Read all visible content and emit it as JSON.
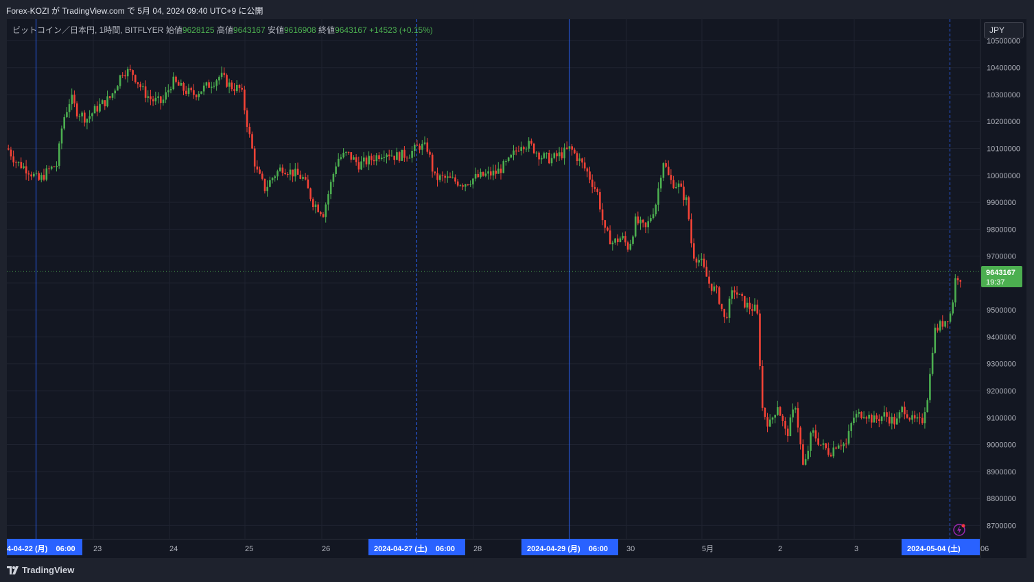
{
  "header": {
    "publish_text": "Forex-KOZI が TradingView.com で 5月 04, 2024 09:40 UTC+9 に公開"
  },
  "legend": {
    "symbol": "ビットコイン／日本円, 1時間, BITFLYER",
    "open_label": "始値",
    "open": "9628125",
    "high_label": "高値",
    "high": "9643167",
    "low_label": "安値",
    "low": "9616908",
    "close_label": "終値",
    "close": "9643167",
    "change": "+14523 (+0.15%)"
  },
  "currency_button": "JPY",
  "price_tag": {
    "price": "9643167",
    "countdown": "19:37"
  },
  "footer": {
    "brand": "TradingView"
  },
  "colors": {
    "up": "#4caf50",
    "down": "#f44336",
    "background": "#131722",
    "grid": "#1f2330",
    "session_line": "#2962ff",
    "price_tag": "#4caf50"
  },
  "icons": {
    "brand": "tradingview-logo-icon",
    "alert": "lightning-icon"
  },
  "chart_data": {
    "type": "candlestick",
    "symbol": "ビットコイン／日本円",
    "interval": "1時間",
    "exchange": "BITFLYER",
    "ylim": [
      8650000,
      10580000
    ],
    "y_ticks": [
      8700000,
      8800000,
      8900000,
      9000000,
      9100000,
      9200000,
      9300000,
      9400000,
      9500000,
      9600000,
      9700000,
      9800000,
      9900000,
      10000000,
      10100000,
      10200000,
      10300000,
      10400000,
      10500000
    ],
    "x_ticks": [
      "23",
      "24",
      "25",
      "26",
      "28",
      "30",
      "5月",
      "2",
      "3",
      "06"
    ],
    "highlighted_dates": [
      "4-04-22 (月)    06:00",
      "2024-04-27 (土)    06:00",
      "2024-04-29 (月)    06:00",
      "2024-05-04 (土)"
    ],
    "last_price": 9643167,
    "grid": true,
    "path_points": [
      [
        0,
        10100000
      ],
      [
        12,
        10050000
      ],
      [
        30,
        10020000
      ],
      [
        45,
        9980000
      ],
      [
        60,
        10020000
      ],
      [
        72,
        10040000
      ],
      [
        80,
        10200000
      ],
      [
        92,
        10290000
      ],
      [
        100,
        10240000
      ],
      [
        115,
        10210000
      ],
      [
        130,
        10250000
      ],
      [
        150,
        10290000
      ],
      [
        168,
        10390000
      ],
      [
        182,
        10380000
      ],
      [
        198,
        10310000
      ],
      [
        210,
        10280000
      ],
      [
        225,
        10270000
      ],
      [
        240,
        10350000
      ],
      [
        255,
        10320000
      ],
      [
        270,
        10300000
      ],
      [
        290,
        10330000
      ],
      [
        310,
        10370000
      ],
      [
        325,
        10330000
      ],
      [
        340,
        10320000
      ],
      [
        352,
        10150000
      ],
      [
        362,
        10020000
      ],
      [
        375,
        9950000
      ],
      [
        388,
        10000000
      ],
      [
        400,
        10030000
      ],
      [
        415,
        10010000
      ],
      [
        430,
        9990000
      ],
      [
        445,
        9900000
      ],
      [
        460,
        9860000
      ],
      [
        470,
        9960000
      ],
      [
        480,
        10060000
      ],
      [
        495,
        10080000
      ],
      [
        512,
        10040000
      ],
      [
        530,
        10060000
      ],
      [
        550,
        10090000
      ],
      [
        565,
        10070000
      ],
      [
        585,
        10080000
      ],
      [
        600,
        10110000
      ],
      [
        612,
        10100000
      ],
      [
        622,
        9990000
      ],
      [
        635,
        9990000
      ],
      [
        650,
        9980000
      ],
      [
        665,
        9970000
      ],
      [
        680,
        9990000
      ],
      [
        695,
        10000000
      ],
      [
        712,
        10010000
      ],
      [
        730,
        10050000
      ],
      [
        748,
        10120000
      ],
      [
        762,
        10110000
      ],
      [
        778,
        10070000
      ],
      [
        792,
        10060000
      ],
      [
        808,
        10080000
      ],
      [
        820,
        10100000
      ],
      [
        832,
        10060000
      ],
      [
        845,
        10010000
      ],
      [
        860,
        9930000
      ],
      [
        870,
        9790000
      ],
      [
        882,
        9750000
      ],
      [
        895,
        9770000
      ],
      [
        905,
        9730000
      ],
      [
        915,
        9830000
      ],
      [
        930,
        9800000
      ],
      [
        945,
        9900000
      ],
      [
        955,
        10060000
      ],
      [
        965,
        9980000
      ],
      [
        978,
        9960000
      ],
      [
        990,
        9900000
      ],
      [
        998,
        9710000
      ],
      [
        1010,
        9680000
      ],
      [
        1022,
        9600000
      ],
      [
        1035,
        9560000
      ],
      [
        1045,
        9460000
      ],
      [
        1058,
        9580000
      ],
      [
        1068,
        9540000
      ],
      [
        1080,
        9510000
      ],
      [
        1092,
        9500000
      ],
      [
        1100,
        9130000
      ],
      [
        1110,
        9070000
      ],
      [
        1122,
        9150000
      ],
      [
        1135,
        9030000
      ],
      [
        1148,
        9150000
      ],
      [
        1160,
        8900000
      ],
      [
        1172,
        9050000
      ],
      [
        1185,
        9000000
      ],
      [
        1198,
        8970000
      ],
      [
        1210,
        9010000
      ],
      [
        1222,
        9000000
      ],
      [
        1232,
        9100000
      ],
      [
        1248,
        9120000
      ],
      [
        1262,
        9090000
      ],
      [
        1278,
        9110000
      ],
      [
        1295,
        9080000
      ],
      [
        1305,
        9140000
      ],
      [
        1318,
        9090000
      ],
      [
        1332,
        9080000
      ],
      [
        1342,
        9200000
      ],
      [
        1350,
        9420000
      ],
      [
        1362,
        9450000
      ],
      [
        1375,
        9490000
      ],
      [
        1382,
        9630000
      ],
      [
        1390,
        9620000
      ],
      [
        1398,
        9643167
      ]
    ]
  }
}
